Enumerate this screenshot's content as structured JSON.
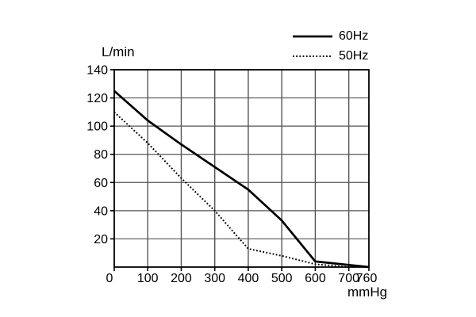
{
  "chart_data": {
    "type": "line",
    "title": "",
    "xlabel": "mmHg",
    "ylabel": "L/min",
    "xlim": [
      0,
      760
    ],
    "ylim": [
      0,
      140
    ],
    "x_ticks": [
      0,
      100,
      200,
      300,
      400,
      500,
      600,
      700,
      760
    ],
    "y_ticks": [
      20,
      40,
      60,
      80,
      100,
      120,
      140
    ],
    "grid": true,
    "legend_position": "top-right",
    "series": [
      {
        "name": "60Hz",
        "style": "solid",
        "color": "#000000",
        "points": [
          [
            0,
            125
          ],
          [
            100,
            104
          ],
          [
            200,
            87
          ],
          [
            300,
            71
          ],
          [
            400,
            55
          ],
          [
            500,
            33
          ],
          [
            600,
            4
          ],
          [
            760,
            0
          ]
        ]
      },
      {
        "name": "50Hz",
        "style": "dotted",
        "color": "#000000",
        "points": [
          [
            0,
            110
          ],
          [
            100,
            88
          ],
          [
            200,
            63
          ],
          [
            300,
            40
          ],
          [
            400,
            13
          ],
          [
            500,
            8
          ],
          [
            600,
            2
          ],
          [
            700,
            0
          ]
        ]
      }
    ]
  },
  "colors": {
    "background": "#ffffff",
    "axis": "#000000",
    "grid": "#555555",
    "text": "#000000"
  }
}
